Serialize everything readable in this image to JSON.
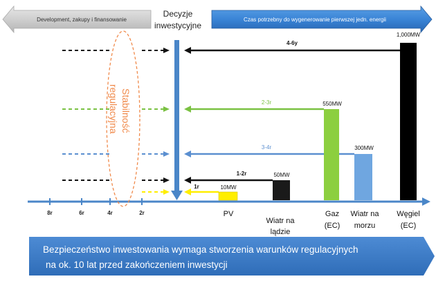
{
  "header": {
    "left_arrow_text": "Development, zakupy i finansowanie",
    "decision_line1": "Decyzje",
    "decision_line2": "inwestycyjne",
    "right_arrow_text": "Czas potrzebny do wygenerowanie pierwszej jedn. energii"
  },
  "regulatory": {
    "line1": "Stabilność",
    "line2": "regulacyjna"
  },
  "durations": {
    "coal": "4-6y",
    "gas": "2-3r",
    "offshore": "3-4r",
    "onshore": "1-2r",
    "pv": "1r"
  },
  "ticks": [
    "8r",
    "6r",
    "4r",
    "2r"
  ],
  "bars": [
    {
      "id": "pv",
      "capacity": "10MW",
      "label_line1": "PV",
      "label_line2": "",
      "color": "#ffee00",
      "mw": 10
    },
    {
      "id": "onshore",
      "capacity": "50MW",
      "label_line1": "Wiatr na",
      "label_line2": "lądzie",
      "color": "#1a1a1a",
      "mw": 50
    },
    {
      "id": "gas",
      "capacity": "550MW",
      "label_line1": "Gaz",
      "label_line2": "(EC)",
      "color": "#8ccf3f",
      "mw": 550
    },
    {
      "id": "offshore",
      "capacity": "300MW",
      "label_line1": "Wiatr na",
      "label_line2": "morzu",
      "color": "#6fa6e0",
      "mw": 300
    },
    {
      "id": "coal",
      "capacity": "1,000MW",
      "label_line1": "Węgiel",
      "label_line2": "(EC)",
      "color": "#000000",
      "mw": 1000
    }
  ],
  "banner": {
    "line1": "Bezpieczeństwo inwestowania wymaga stworzenia warunków regulacyjnych",
    "line2": "na ok. 10 lat przed zakończeniem inwestycji"
  },
  "colors": {
    "axis": "#4a86c8",
    "coal_arrow": "#111111",
    "gas_arrow": "#7ac142",
    "offshore_arrow": "#5b8fd0",
    "onshore_arrow": "#111111",
    "pv_arrow": "#ffee00",
    "ellipse": "#f08a4b",
    "banner": "#3b78c4"
  }
}
